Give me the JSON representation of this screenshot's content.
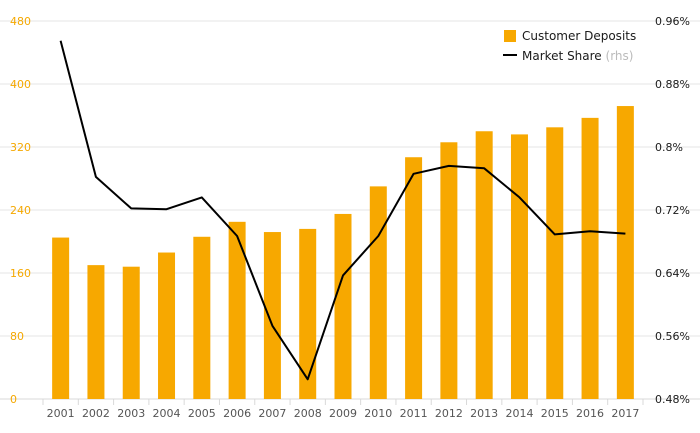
{
  "chart_data": {
    "type": "bar",
    "categories": [
      "2001",
      "2002",
      "2003",
      "2004",
      "2005",
      "2006",
      "2007",
      "2008",
      "2009",
      "2010",
      "2011",
      "2012",
      "2013",
      "2014",
      "2015",
      "2016",
      "2017"
    ],
    "series": [
      {
        "name": "Customer Deposits",
        "type": "bar",
        "axis": "left",
        "color": "#f7a800",
        "values": [
          205,
          170,
          168,
          186,
          206,
          225,
          212,
          216,
          235,
          270,
          307,
          326,
          340,
          336,
          345,
          357,
          372
        ]
      },
      {
        "name": "Market Share",
        "name_suffix": "(rhs)",
        "type": "line",
        "axis": "right",
        "color": "#000000",
        "values": [
          0.935,
          0.762,
          0.722,
          0.721,
          0.736,
          0.687,
          0.573,
          0.505,
          0.637,
          0.687,
          0.766,
          0.776,
          0.773,
          0.736,
          0.689,
          0.693,
          0.69
        ]
      }
    ],
    "y_left": {
      "lim": [
        0,
        480
      ],
      "ticks": [
        "0",
        "80",
        "160",
        "240",
        "320",
        "400",
        "480"
      ],
      "tick_values": [
        0,
        80,
        160,
        240,
        320,
        400,
        480
      ],
      "color": "#f5a800"
    },
    "y_right": {
      "lim": [
        0.48,
        0.96
      ],
      "ticks": [
        "0.48%",
        "0.56%",
        "0.64%",
        "0.72%",
        "0.8%",
        "0.88%",
        "0.96%"
      ],
      "tick_values": [
        0.48,
        0.56,
        0.64,
        0.72,
        0.8,
        0.88,
        0.96
      ]
    },
    "grid": true,
    "legend_position": "top-right",
    "title": "",
    "xlabel": "",
    "ylabel": ""
  }
}
